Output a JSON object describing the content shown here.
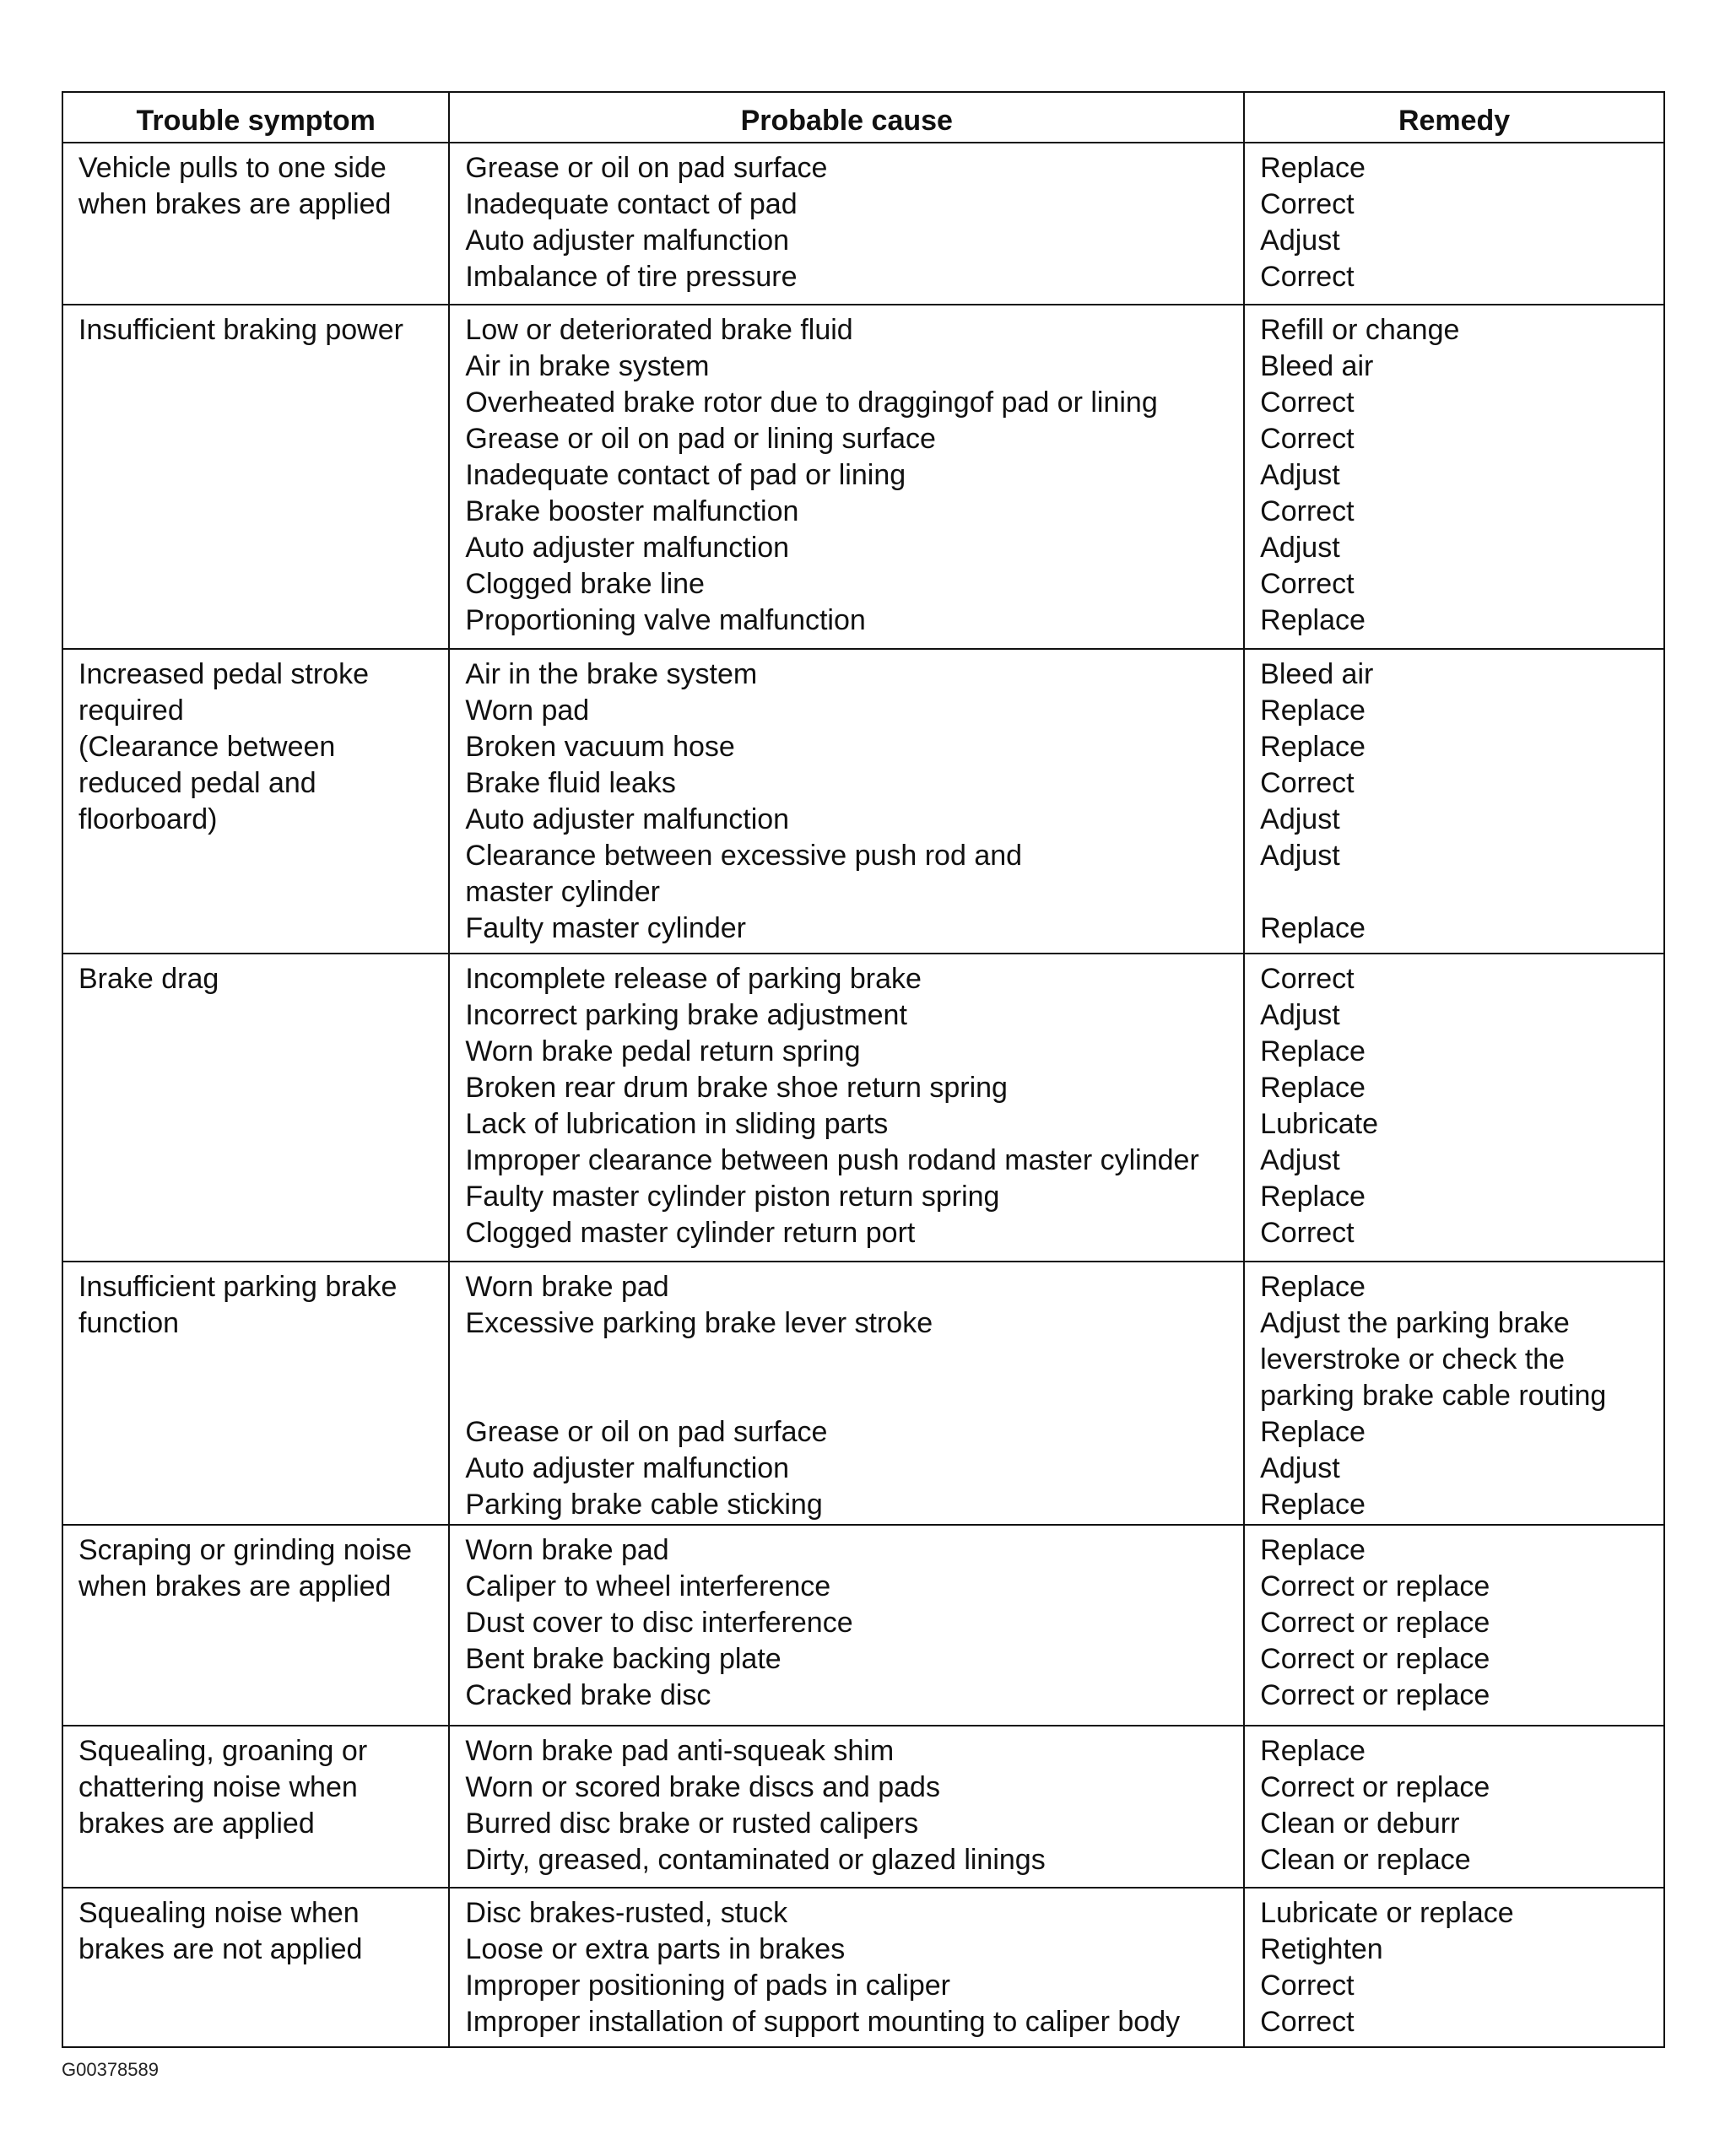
{
  "headers": [
    "Trouble symptom",
    "Probable cause",
    "Remedy"
  ],
  "rows": [
    {
      "symptom": [
        "Vehicle pulls to one side",
        "when brakes are applied"
      ],
      "causes": [
        "Grease or oil on pad surface",
        "Inadequate contact of pad",
        "Auto adjuster malfunction",
        "Imbalance of tire pressure"
      ],
      "remedies": [
        "Replace",
        "Correct",
        "Adjust",
        "Correct"
      ]
    },
    {
      "symptom": [
        "Insufficient braking power"
      ],
      "causes": [
        "Low or deteriorated brake fluid",
        "Air in brake system",
        "Overheated brake rotor due to draggingof pad or lining",
        "Grease or oil on pad or lining surface",
        "Inadequate contact of pad or lining",
        "Brake booster malfunction",
        "Auto adjuster malfunction",
        "Clogged brake line",
        "Proportioning valve malfunction"
      ],
      "remedies": [
        "Refill or change",
        "Bleed air",
        "Correct",
        "Correct",
        "Adjust",
        "Correct",
        "Adjust",
        "Correct",
        "Replace"
      ]
    },
    {
      "symptom": [
        "Increased pedal stroke",
        "required",
        "(Clearance between",
        "reduced pedal and",
        "floorboard)"
      ],
      "causes": [
        "Air in the brake system",
        "Worn pad",
        "Broken vacuum hose",
        "Brake fluid leaks",
        "Auto adjuster malfunction",
        "Clearance between excessive push rod and",
        "master cylinder",
        "Faulty master cylinder"
      ],
      "remedies": [
        "Bleed air",
        "Replace",
        "Replace",
        "Correct",
        "Adjust",
        "Adjust",
        "",
        "Replace"
      ]
    },
    {
      "symptom": [
        "Brake drag"
      ],
      "causes": [
        "Incomplete release of parking brake",
        "Incorrect parking brake adjustment",
        "Worn brake pedal return spring",
        "Broken rear drum brake shoe return spring",
        "Lack of lubrication in sliding parts",
        "Improper clearance between push rodand master cylinder",
        "Faulty master cylinder piston return spring",
        "Clogged master cylinder return port"
      ],
      "remedies": [
        "Correct",
        "Adjust",
        "Replace",
        "Replace",
        "Lubricate",
        "Adjust",
        "Replace",
        "Correct"
      ]
    },
    {
      "symptom": [
        "Insufficient parking brake",
        "function"
      ],
      "causes": [
        "Worn brake pad",
        "Excessive parking brake lever stroke",
        "",
        "",
        "Grease or oil on pad surface",
        "Auto adjuster malfunction",
        "Parking brake cable sticking"
      ],
      "remedies": [
        "Replace",
        "Adjust the parking brake",
        "leverstroke or check the",
        "parking brake cable routing",
        "Replace",
        "Adjust",
        "Replace"
      ]
    },
    {
      "symptom": [
        "Scraping or grinding noise",
        "when brakes are applied"
      ],
      "causes": [
        "Worn brake pad",
        "Caliper to wheel interference",
        "Dust cover to disc interference",
        "Bent brake backing plate",
        "Cracked brake disc"
      ],
      "remedies": [
        "Replace",
        "Correct or replace",
        "Correct or replace",
        "Correct or replace",
        "Correct or replace"
      ]
    },
    {
      "symptom": [
        "Squealing, groaning or",
        "chattering noise when",
        "brakes are applied"
      ],
      "causes": [
        "Worn brake pad anti-squeak shim",
        "Worn or scored brake discs and pads",
        "Burred disc brake or rusted calipers",
        "Dirty, greased, contaminated or glazed linings"
      ],
      "remedies": [
        "Replace",
        "Correct or replace",
        "Clean or deburr",
        "Clean or replace"
      ]
    },
    {
      "symptom": [
        "Squealing noise when",
        "brakes are not applied"
      ],
      "causes": [
        "Disc brakes-rusted, stuck",
        "Loose or extra parts in brakes",
        "Improper positioning of pads in caliper",
        "Improper installation of support mounting to caliper body"
      ],
      "remedies": [
        "Lubricate or replace",
        "Retighten",
        "Correct",
        "Correct"
      ]
    }
  ],
  "footer": "G00378589"
}
